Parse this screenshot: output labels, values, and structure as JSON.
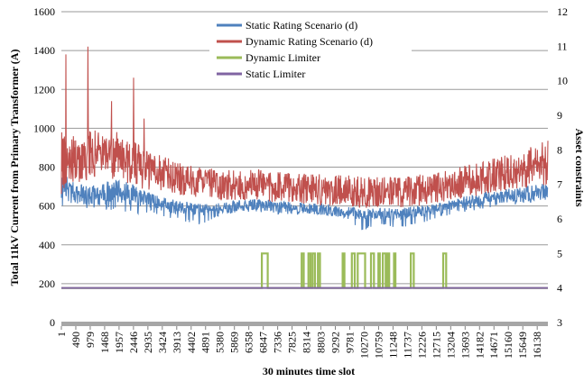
{
  "chart_data": {
    "type": "line",
    "title": "",
    "xlabel": "30 minutes time slot",
    "ylabel": "Total 11kV Current from Primary Transformer (A)",
    "y2label": "Asset constraints",
    "xlim": [
      1,
      16500
    ],
    "ylim": [
      0,
      1600
    ],
    "y2lim": [
      3,
      12
    ],
    "x_ticks": [
      1,
      490,
      979,
      1468,
      1957,
      2446,
      2935,
      3424,
      3913,
      4402,
      4891,
      5380,
      5869,
      6358,
      6847,
      7336,
      7825,
      8314,
      8803,
      9292,
      9781,
      10270,
      10759,
      11248,
      11737,
      12226,
      12715,
      13204,
      13693,
      14182,
      14671,
      15160,
      15649,
      16138
    ],
    "x_tick_labels": [
      "1",
      "490",
      "979",
      "1468",
      "1957",
      "2446",
      "2935",
      "3424",
      "3913",
      "4402",
      "4891",
      "5380",
      "5869",
      "6358",
      "6847",
      "7336",
      "7825",
      "8314",
      "8803",
      "9292",
      "9781",
      "10270",
      "10759",
      "11248",
      "11737",
      "12226",
      "12715",
      "13204",
      "13693",
      "14182",
      "14671",
      "15160",
      "15649",
      "16138"
    ],
    "y_ticks": [
      0,
      200,
      400,
      600,
      800,
      1000,
      1200,
      1400,
      1600
    ],
    "y_tick_labels": [
      "0",
      "200",
      "400",
      "600",
      "800",
      "1000",
      "1200",
      "1400",
      "1600"
    ],
    "y2_ticks": [
      3,
      4,
      5,
      6,
      7,
      8,
      9,
      10,
      11,
      12
    ],
    "y2_tick_labels": [
      "3",
      "4",
      "5",
      "6",
      "7",
      "8",
      "9",
      "10",
      "11",
      "12"
    ],
    "grid": "horizontal",
    "legend_position": "top-center",
    "series": [
      {
        "name": "Static Rating Scenario (d)",
        "color": "#4F81BD",
        "axis": "left",
        "style": "noisy-band",
        "x": [
          1,
          300,
          700,
          1200,
          1800,
          2400,
          3000,
          3600,
          4200,
          4800,
          5400,
          6000,
          6600,
          7200,
          7800,
          8400,
          9000,
          9600,
          10200,
          10800,
          11400,
          12000,
          12600,
          13200,
          13800,
          14400,
          15000,
          15600,
          16200,
          16500
        ],
        "center": [
          720,
          670,
          660,
          650,
          680,
          660,
          620,
          600,
          590,
          580,
          590,
          600,
          610,
          600,
          590,
          590,
          580,
          570,
          560,
          560,
          560,
          570,
          580,
          600,
          620,
          640,
          650,
          660,
          670,
          680
        ],
        "spread": [
          90,
          60,
          50,
          55,
          60,
          55,
          45,
          40,
          35,
          30,
          30,
          30,
          30,
          30,
          30,
          30,
          30,
          30,
          30,
          30,
          30,
          30,
          30,
          30,
          35,
          35,
          35,
          40,
          40,
          40
        ],
        "min": [
          600,
          590,
          590,
          580,
          580,
          560,
          560,
          540,
          520,
          500,
          550,
          560,
          570,
          560,
          550,
          560,
          550,
          540,
          470,
          500,
          480,
          500,
          530,
          550,
          570,
          590,
          600,
          610,
          620,
          630
        ]
      },
      {
        "name": "Dynamic Rating Scenario (d)",
        "color": "#C0504D",
        "axis": "left",
        "style": "noisy-band",
        "x": [
          1,
          300,
          700,
          1200,
          1800,
          2400,
          3000,
          3600,
          4200,
          4800,
          5400,
          6000,
          6600,
          7200,
          7800,
          8400,
          9000,
          9600,
          10200,
          10800,
          11400,
          12000,
          12600,
          13200,
          13800,
          14400,
          15000,
          15600,
          16200,
          16500
        ],
        "center": [
          820,
          840,
          850,
          880,
          860,
          820,
          780,
          760,
          730,
          720,
          710,
          710,
          710,
          700,
          690,
          690,
          680,
          680,
          670,
          670,
          670,
          680,
          690,
          710,
          730,
          750,
          770,
          790,
          810,
          830
        ],
        "spread": [
          180,
          120,
          130,
          140,
          130,
          120,
          100,
          90,
          80,
          80,
          80,
          80,
          80,
          80,
          80,
          80,
          80,
          80,
          80,
          80,
          80,
          80,
          80,
          80,
          85,
          90,
          95,
          100,
          110,
          120
        ],
        "peaks": [
          [
            150,
            1380
          ],
          [
            900,
            1420
          ],
          [
            1700,
            1140
          ],
          [
            2450,
            1260
          ],
          [
            2800,
            1050
          ]
        ]
      },
      {
        "name": "Dynamic Limiter",
        "color": "#9BBB59",
        "axis": "right",
        "baseline": 4,
        "pulse_value": 5,
        "pulses": [
          [
            6800,
            7000
          ],
          [
            8150,
            8220
          ],
          [
            8380,
            8450
          ],
          [
            8520,
            8600
          ],
          [
            8700,
            8770
          ],
          [
            9540,
            9600
          ],
          [
            9850,
            9950
          ],
          [
            10050,
            10300
          ],
          [
            10500,
            10600
          ],
          [
            10750,
            10800
          ],
          [
            10900,
            11000
          ],
          [
            11050,
            11120
          ],
          [
            11280,
            11330
          ],
          [
            11850,
            11950
          ],
          [
            12950,
            13050
          ]
        ]
      },
      {
        "name": "Static Limiter",
        "color": "#8064A2",
        "axis": "right",
        "constant": 4
      }
    ]
  }
}
